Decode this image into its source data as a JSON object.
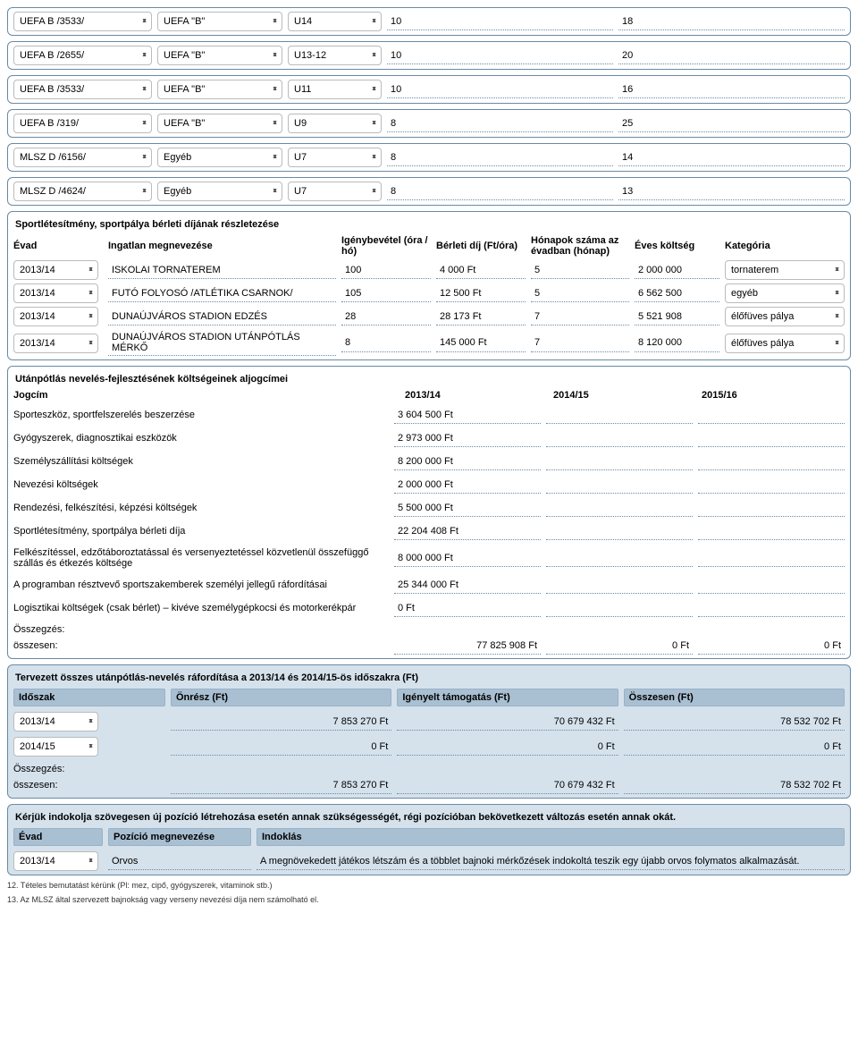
{
  "topRows": [
    {
      "a": "UEFA B /3533/",
      "b": "UEFA \"B\"",
      "c": "U14",
      "d": "10",
      "e": "18"
    },
    {
      "a": "UEFA B /2655/",
      "b": "UEFA \"B\"",
      "c": "U13-12",
      "d": "10",
      "e": "20"
    },
    {
      "a": "UEFA B /3533/",
      "b": "UEFA \"B\"",
      "c": "U11",
      "d": "10",
      "e": "16"
    },
    {
      "a": "UEFA B /319/",
      "b": "UEFA \"B\"",
      "c": "U9",
      "d": "8",
      "e": "25"
    },
    {
      "a": "MLSZ D /6156/",
      "b": "Egyéb",
      "c": "U7",
      "d": "8",
      "e": "14"
    },
    {
      "a": "MLSZ D /4624/",
      "b": "Egyéb",
      "c": "U7",
      "d": "8",
      "e": "13"
    }
  ],
  "facility": {
    "title": "Sportlétesítmény, sportpálya bérleti díjának részletezése",
    "headers": [
      "Évad",
      "Ingatlan megnevezése",
      "Igénybevétel (óra / hó)",
      "Bérleti díj (Ft/óra)",
      "Hónapok száma az évadban (hónap)",
      "Éves költség",
      "Kategória"
    ],
    "rows": [
      {
        "yr": "2013/14",
        "name": "ISKOLAI TORNATEREM",
        "hrs": "100",
        "fee": "4 000 Ft",
        "mon": "5",
        "cost": "2 000 000",
        "cat": "tornaterem"
      },
      {
        "yr": "2013/14",
        "name": "FUTÓ FOLYOSÓ /ATLÉTIKA CSARNOK/",
        "hrs": "105",
        "fee": "12 500 Ft",
        "mon": "5",
        "cost": "6 562 500",
        "cat": "egyéb"
      },
      {
        "yr": "2013/14",
        "name": "DUNAÚJVÁROS STADION EDZÉS",
        "hrs": "28",
        "fee": "28 173 Ft",
        "mon": "7",
        "cost": "5 521 908",
        "cat": "élőfüves pálya"
      },
      {
        "yr": "2013/14",
        "name": "DUNAÚJVÁROS STADION UTÁNPÓTLÁS MÉRKŐ",
        "hrs": "8",
        "fee": "145 000 Ft",
        "mon": "7",
        "cost": "8 120 000",
        "cat": "élőfüves pálya"
      }
    ]
  },
  "costs": {
    "title": "Utánpótlás nevelés-fejlesztésének költségeinek aljogcímei",
    "headers": [
      "Jogcím",
      "2013/14",
      "2014/15",
      "2015/16"
    ],
    "rows": [
      {
        "label": "Sporteszköz, sportfelszerelés beszerzése",
        "v1": "3 604 500  Ft"
      },
      {
        "label": "Gyógyszerek, diagnosztikai eszközök",
        "v1": "2 973 000  Ft"
      },
      {
        "label": "Személyszállítási költségek",
        "v1": "8 200 000 Ft"
      },
      {
        "label": "Nevezési költségek",
        "v1": "2 000 000 Ft"
      },
      {
        "label": "Rendezési, felkészítési, képzési költségek",
        "v1": "5 500 000 Ft"
      },
      {
        "label": "Sportlétesítmény, sportpálya bérleti díja",
        "v1": "22 204 408  Ft"
      },
      {
        "label": "Felkészítéssel, edzőtáboroztatással és versenyeztetéssel közvetlenül összefüggő szállás és étkezés költsége",
        "v1": "8 000 000 Ft"
      },
      {
        "label": "A programban résztvevő sportszakemberek személyi jellegű ráfordításai",
        "v1": "25 344 000  Ft"
      },
      {
        "label": "Logisztikai költségek (csak bérlet) – kivéve személygépkocsi és motorkerékpár",
        "v1": "0 Ft"
      }
    ],
    "sumLabel": "Összegzés:",
    "totalLabel": "összesen:",
    "totals": [
      "77 825 908 Ft",
      "0 Ft",
      "0 Ft"
    ]
  },
  "planned": {
    "title": "Tervezett összes utánpótlás-nevelés ráfordítása a 2013/14 és 2014/15-ös időszakra (Ft)",
    "headers": [
      "Időszak",
      "Önrész (Ft)",
      "Igényelt támogatás (Ft)",
      "Összesen (Ft)"
    ],
    "rows": [
      {
        "p": "2013/14",
        "a": "7 853 270 Ft",
        "b": "70 679 432 Ft",
        "c": "78 532 702 Ft"
      },
      {
        "p": "2014/15",
        "a": "0 Ft",
        "b": "0 Ft",
        "c": "0 Ft"
      }
    ],
    "sumLabel": "Összegzés:",
    "totalLabel": "összesen:",
    "totals": [
      "7 853 270 Ft",
      "70 679 432 Ft",
      "78 532 702 Ft"
    ]
  },
  "justify": {
    "title": "Kérjük indokolja szövegesen új pozíció létrehozása esetén annak szükségességét, régi pozícióban bekövetkezett változás esetén annak okát.",
    "headers": [
      "Évad",
      "Pozíció megnevezése",
      "Indoklás"
    ],
    "rows": [
      {
        "yr": "2013/14",
        "pos": "Orvos",
        "reason": "A megnövekedett játékos létszám és a többlet bajnoki mérkőzések indokoltá teszik egy újabb orvos folymatos alkalmazását."
      }
    ]
  },
  "foot12": "12. Tételes bemutatást kérünk (Pl: mez, cipő, gyógyszerek, vitaminok stb.)",
  "foot13": "13. Az MLSZ által szervezett bajnokság vagy verseny nevezési díja nem számolható el."
}
